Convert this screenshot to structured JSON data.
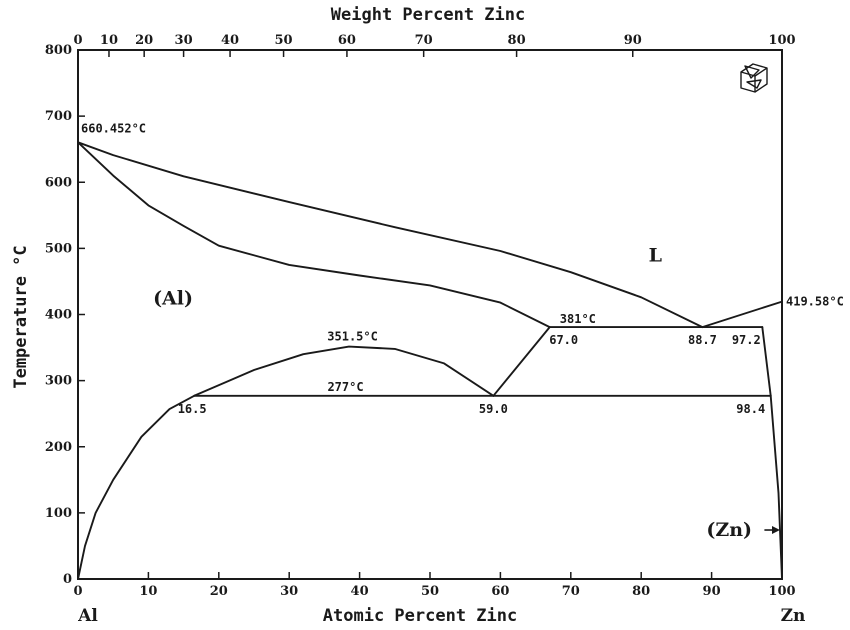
{
  "chart_data": {
    "type": "line",
    "title": "",
    "xlabel": "Atomic Percent Zinc",
    "x2label": "Weight Percent Zinc",
    "ylabel": "Temperature",
    "ylabel_unit": "°C",
    "xlim": [
      0,
      100
    ],
    "ylim": [
      0,
      800
    ],
    "grid": false,
    "x_ticks": [
      "0",
      "10",
      "20",
      "30",
      "40",
      "50",
      "60",
      "70",
      "80",
      "90",
      "100"
    ],
    "x2_ticks": [
      {
        "wt": 0,
        "at": 0
      },
      {
        "wt": 10,
        "at": 4.4
      },
      {
        "wt": 20,
        "at": 9.4
      },
      {
        "wt": 30,
        "at": 15.0
      },
      {
        "wt": 40,
        "at": 21.6
      },
      {
        "wt": 50,
        "at": 29.2
      },
      {
        "wt": 60,
        "at": 38.2
      },
      {
        "wt": 70,
        "at": 49.1
      },
      {
        "wt": 80,
        "at": 62.3
      },
      {
        "wt": 90,
        "at": 78.8
      },
      {
        "wt": 100,
        "at": 100
      }
    ],
    "y_ticks": [
      "0",
      "100",
      "200",
      "300",
      "400",
      "500",
      "600",
      "700",
      "800"
    ],
    "axis_endpoints": {
      "left": "Al",
      "right": "Zn"
    },
    "series": [
      {
        "points": [
          [
            0,
            660.452
          ],
          [
            5,
            641
          ],
          [
            15,
            609
          ],
          [
            30,
            570
          ],
          [
            45,
            532
          ],
          [
            60,
            496
          ],
          [
            70,
            464
          ],
          [
            80,
            426
          ],
          [
            88.7,
            381
          ]
        ]
      },
      {
        "points": [
          [
            0,
            660.452
          ],
          [
            5,
            610
          ],
          [
            10,
            565
          ],
          [
            15,
            534
          ],
          [
            20,
            504
          ],
          [
            30,
            475
          ],
          [
            40,
            459
          ],
          [
            50,
            444
          ],
          [
            60,
            418
          ],
          [
            67,
            381
          ]
        ]
      },
      {
        "points": [
          [
            88.7,
            381
          ],
          [
            100,
            419.58
          ]
        ]
      },
      {
        "points": [
          [
            67,
            381
          ],
          [
            97.2,
            381
          ]
        ]
      },
      {
        "points": [
          [
            97.2,
            381
          ],
          [
            98.4,
            277
          ]
        ]
      },
      {
        "points": [
          [
            98.4,
            277
          ],
          [
            99.5,
            130
          ],
          [
            100,
            0
          ]
        ]
      },
      {
        "points": [
          [
            67,
            381
          ],
          [
            59,
            277
          ]
        ]
      },
      {
        "points": [
          [
            16.5,
            277
          ],
          [
            59,
            277
          ],
          [
            98.4,
            277
          ]
        ]
      },
      {
        "points": [
          [
            16.5,
            277
          ],
          [
            25,
            316
          ],
          [
            32,
            340
          ],
          [
            38.5,
            351.5
          ],
          [
            45,
            348
          ],
          [
            52,
            326
          ],
          [
            59,
            277
          ]
        ]
      },
      {
        "points": [
          [
            0,
            0
          ],
          [
            1,
            50
          ],
          [
            2.5,
            100
          ],
          [
            5,
            150
          ],
          [
            9,
            215
          ],
          [
            13,
            257
          ],
          [
            16.5,
            277
          ]
        ]
      }
    ],
    "annotations": [
      {
        "text": "660.452°C",
        "x": 0,
        "y": 660.452
      },
      {
        "text": "419.58°C",
        "x": 100,
        "y": 419.58
      },
      {
        "text": "381°C",
        "x": 71,
        "y": 381
      },
      {
        "text": "351.5°C",
        "x": 39,
        "y": 351.5
      },
      {
        "text": "277°C",
        "x": 38,
        "y": 277
      },
      {
        "text": "67.0",
        "x": 67,
        "y": 381
      },
      {
        "text": "88.7",
        "x": 88.7,
        "y": 381
      },
      {
        "text": "97.2",
        "x": 97.2,
        "y": 381
      },
      {
        "text": "16.5",
        "x": 16.5,
        "y": 277
      },
      {
        "text": "59.0",
        "x": 59,
        "y": 277
      },
      {
        "text": "98.4",
        "x": 98.4,
        "y": 277
      }
    ],
    "phase_labels": [
      {
        "text": "L",
        "x": 82,
        "y": 480
      },
      {
        "text": "(Al)",
        "x": 13.5,
        "y": 415
      },
      {
        "text": "(Zn)",
        "x": 92.5,
        "y": 65
      }
    ],
    "colors": {
      "line": "#1a1a1a",
      "background": "#ffffff"
    }
  },
  "icons": {
    "corner": "crystal-cube-icon"
  }
}
